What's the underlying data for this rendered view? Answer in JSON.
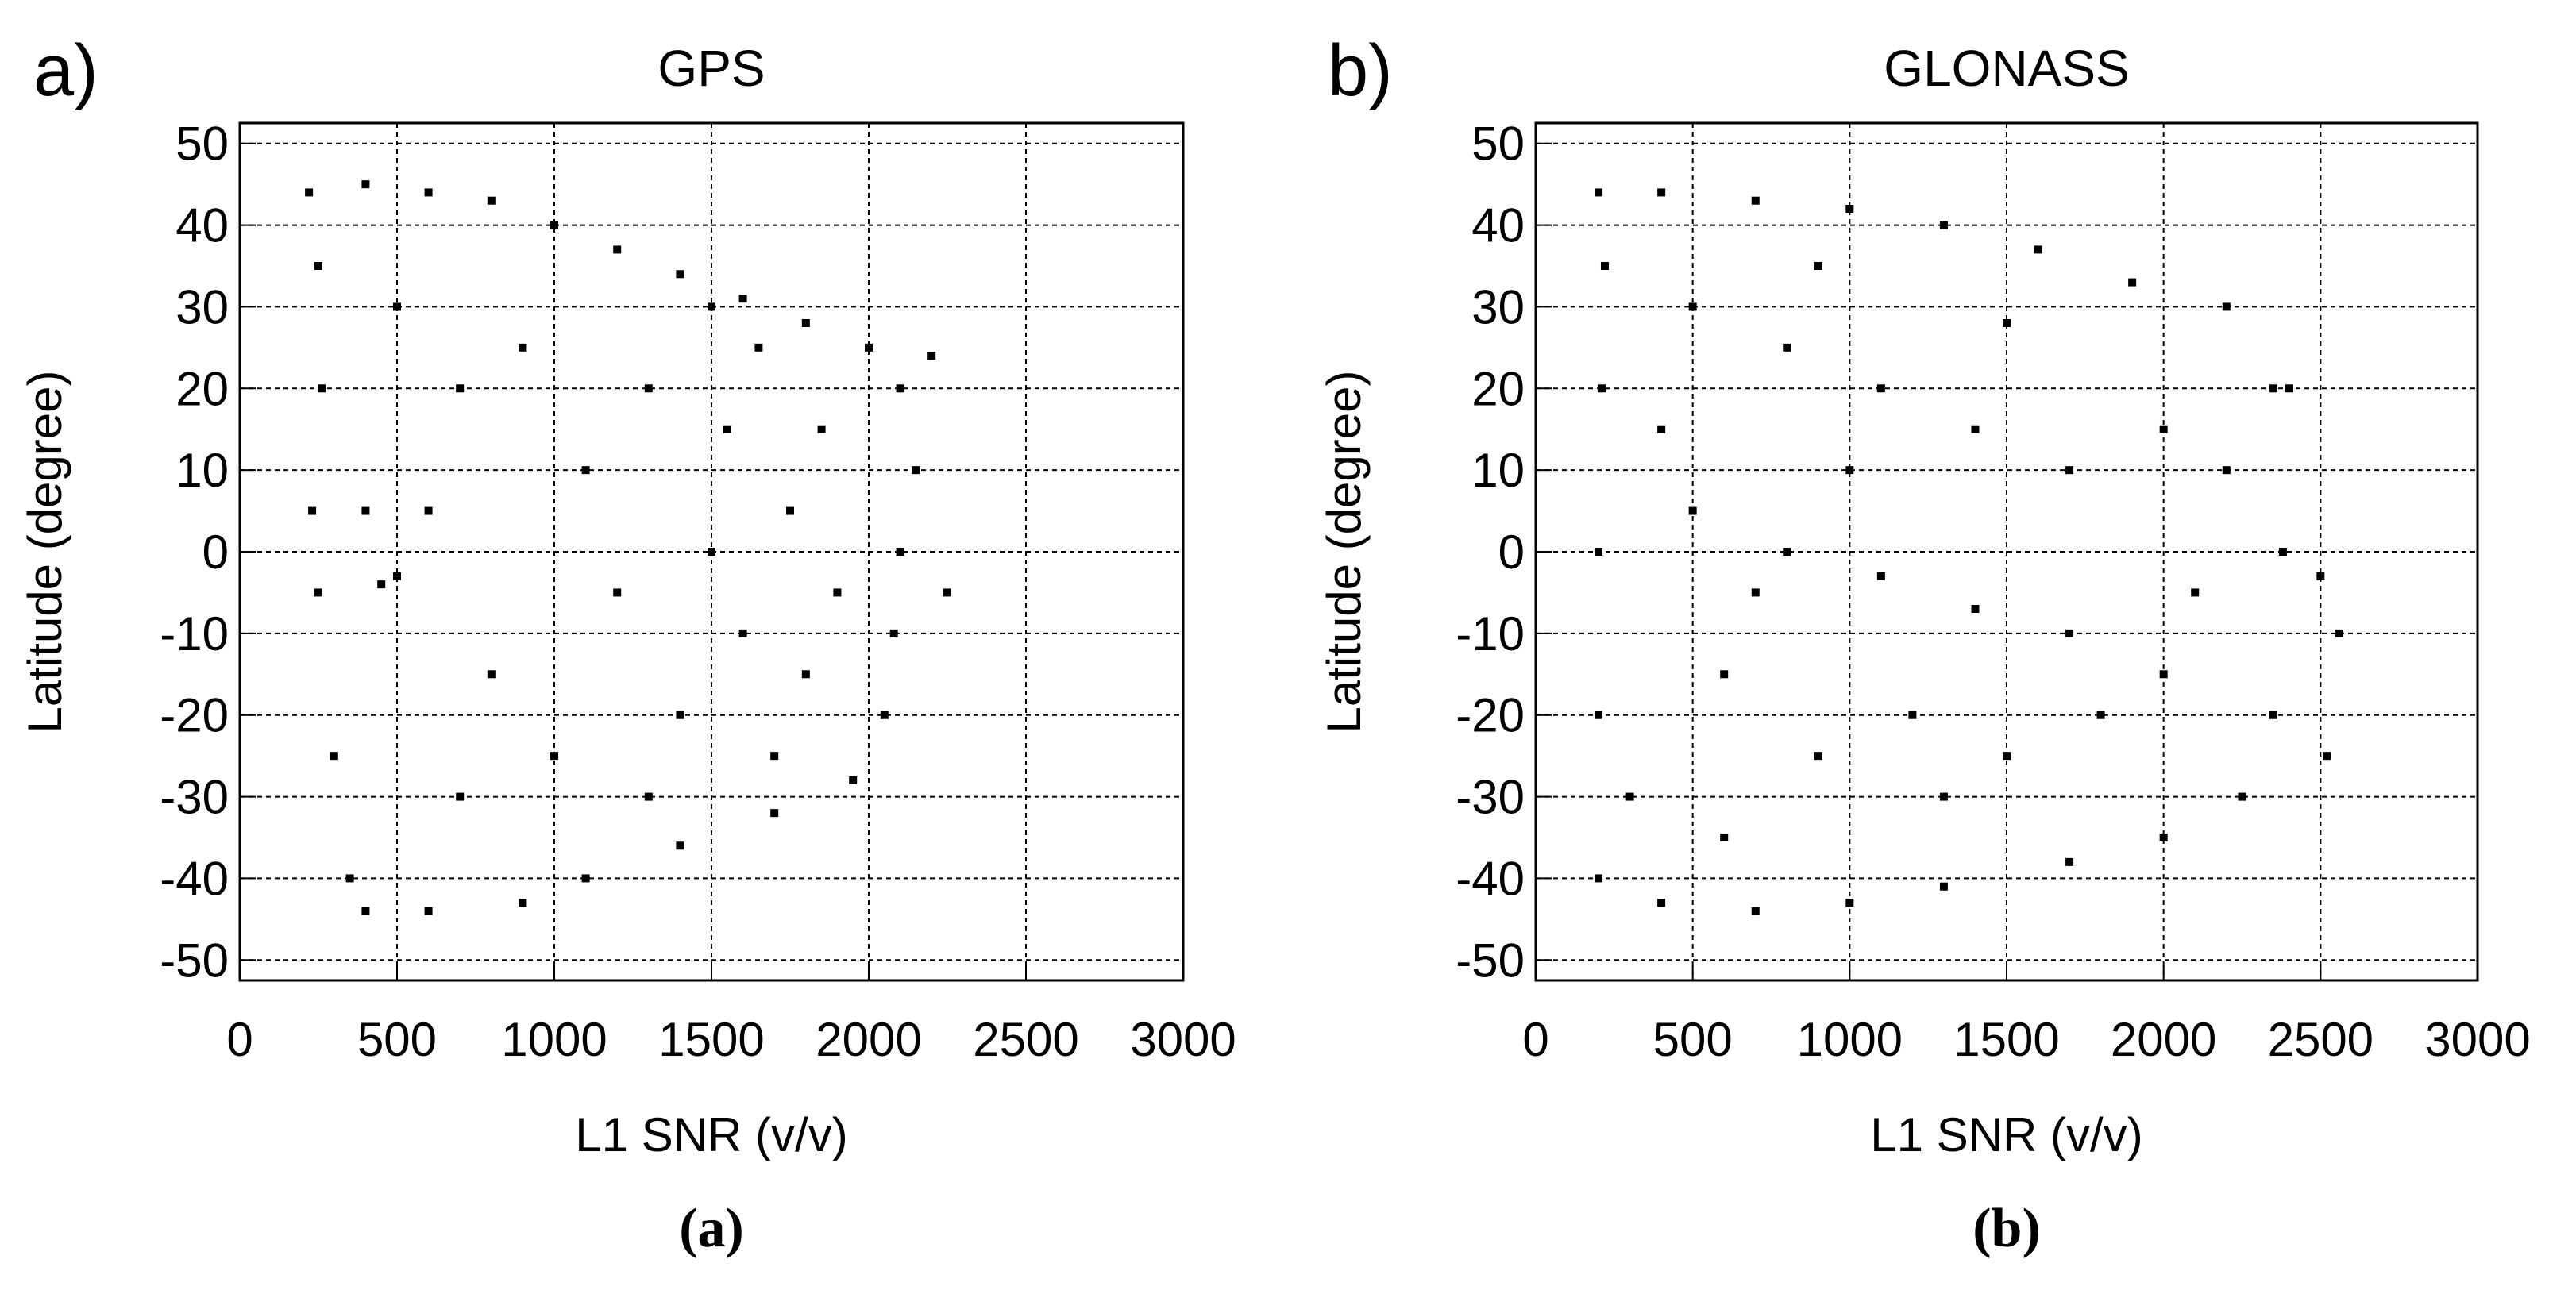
{
  "chart_data": [
    {
      "type": "scatter",
      "panel_label": "a)",
      "title": "GPS",
      "caption": "(a)",
      "x_label": "L1 SNR (v/v)",
      "y_label": "Latitude (degree)",
      "color": "#000000",
      "grid": true,
      "xlim": [
        0,
        3000
      ],
      "xticks": [
        0,
        500,
        1000,
        1500,
        2000,
        2500,
        3000
      ],
      "ylim": [
        -52.5,
        52.5
      ],
      "yticks": [
        -50,
        -40,
        -30,
        -20,
        -10,
        0,
        10,
        20,
        30,
        40,
        50
      ],
      "x": [
        220,
        400,
        600,
        800,
        1000,
        1200,
        1400,
        1600,
        1800,
        2000,
        2100,
        2150,
        2100,
        2080,
        2050,
        1950,
        1700,
        1400,
        1100,
        900,
        600,
        400,
        350,
        300,
        250,
        230,
        260,
        250,
        500,
        700,
        600,
        500,
        800,
        700,
        900,
        1100,
        1200,
        1300,
        1400,
        1500,
        1550,
        1600,
        1650,
        1700,
        1750,
        1800,
        1850,
        1900,
        1500,
        1300,
        2200,
        2250,
        1000,
        450,
        400
      ],
      "y": [
        44,
        45,
        44,
        43,
        40,
        37,
        34,
        31,
        28,
        25,
        20,
        10,
        0,
        -10,
        -20,
        -28,
        -32,
        -36,
        -40,
        -43,
        -44,
        -44,
        -40,
        -25,
        -5,
        5,
        20,
        35,
        30,
        20,
        5,
        -3,
        -15,
        -30,
        25,
        10,
        -5,
        20,
        -20,
        0,
        15,
        -10,
        25,
        -25,
        5,
        -15,
        15,
        -5,
        30,
        -30,
        24,
        -5,
        -25,
        -4,
        5
      ]
    },
    {
      "type": "scatter",
      "panel_label": "b)",
      "title": "GLONASS",
      "caption": "(b)",
      "x_label": "L1 SNR (v/v)",
      "y_label": "Latitude (degree)",
      "color": "#000000",
      "grid": true,
      "xlim": [
        0,
        3000
      ],
      "xticks": [
        0,
        500,
        1000,
        1500,
        2000,
        2500,
        3000
      ],
      "ylim": [
        -52.5,
        52.5
      ],
      "yticks": [
        -50,
        -40,
        -30,
        -20,
        -10,
        0,
        10,
        20,
        30,
        40,
        50
      ],
      "x": [
        200,
        400,
        700,
        1000,
        1300,
        1600,
        1900,
        2200,
        2350,
        2380,
        2350,
        2250,
        2000,
        1700,
        1300,
        1000,
        700,
        400,
        200,
        200,
        200,
        210,
        220,
        500,
        800,
        1100,
        1400,
        1700,
        2000,
        500,
        800,
        1100,
        1400,
        1700,
        2000,
        600,
        900,
        1200,
        1500,
        1800,
        2100,
        2200,
        900,
        1500,
        300,
        600,
        1000,
        1300,
        2520,
        2560,
        2500,
        2400,
        700,
        400
      ],
      "y": [
        44,
        44,
        43,
        42,
        40,
        37,
        33,
        30,
        20,
        0,
        -20,
        -30,
        -35,
        -38,
        -41,
        -43,
        -44,
        -43,
        -40,
        -20,
        0,
        20,
        35,
        30,
        25,
        20,
        15,
        10,
        15,
        5,
        0,
        -3,
        -7,
        -10,
        -15,
        -15,
        -25,
        -20,
        -25,
        -20,
        -5,
        10,
        35,
        28,
        -30,
        -35,
        10,
        -30,
        -25,
        -10,
        -3,
        20,
        -5,
        15
      ]
    }
  ]
}
